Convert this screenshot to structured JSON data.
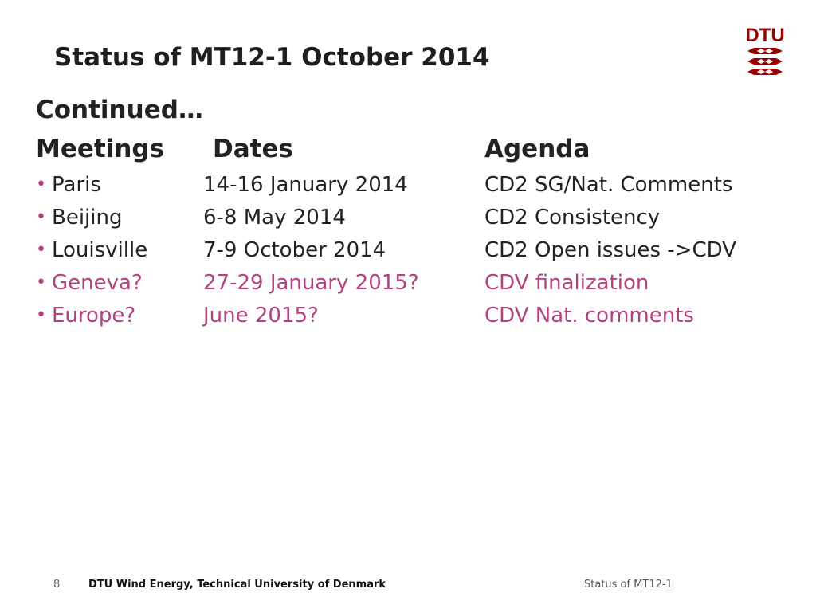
{
  "slide": {
    "title": "Status of MT12-1 October 2014",
    "continued": "Continued…",
    "headers": {
      "meetings": "Meetings",
      "dates": "Dates",
      "agenda": "Agenda"
    },
    "rows": [
      {
        "meeting": "Paris",
        "date": "14-16 January 2014",
        "agenda": "CD2 SG/Nat. Comments",
        "status": "done"
      },
      {
        "meeting": "Beijing",
        "date": "6-8 May 2014",
        "agenda": "CD2 Consistency",
        "status": "done"
      },
      {
        "meeting": "Louisville",
        "date": "7-9 October 2014",
        "agenda": "CD2 Open issues ->CDV",
        "status": "done"
      },
      {
        "meeting": "Geneva?",
        "date": "27-29 January 2015?",
        "agenda": "CDV finalization",
        "status": "planned"
      },
      {
        "meeting": "Europe?",
        "date": "June 2015?",
        "agenda": "CDV Nat. comments",
        "status": "planned"
      }
    ]
  },
  "footer": {
    "page_number": "8",
    "organization": "DTU Wind Energy, Technical University of Denmark",
    "right_text": "Status of MT12-1"
  },
  "colors": {
    "planned": "#b4417f",
    "logo_red": "#990000",
    "text": "#222222"
  },
  "logo": {
    "name": "dtu-logo",
    "text": "DTU"
  }
}
